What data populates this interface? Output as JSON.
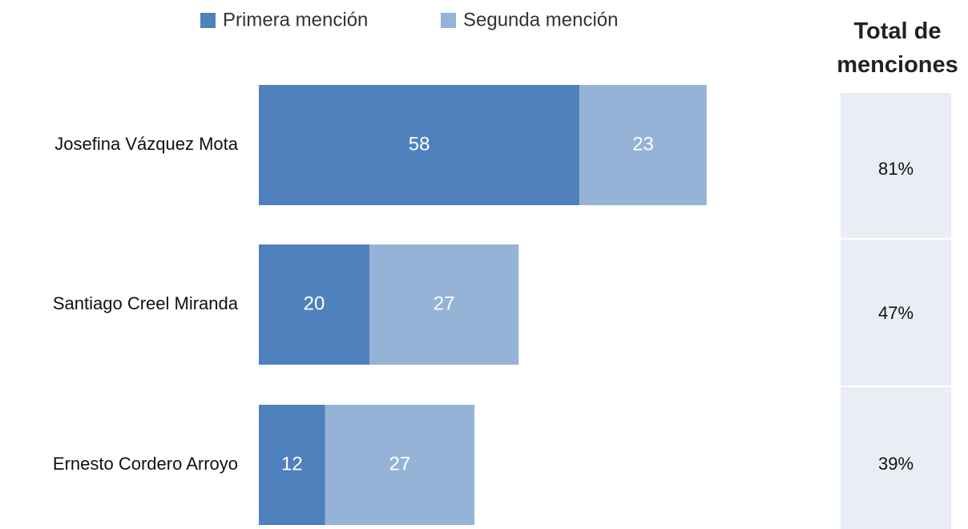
{
  "chart_data": {
    "type": "stacked-barh",
    "categories": [
      "Josefina Vázquez Mota",
      "Santiago Creel Miranda",
      "Ernesto Cordero Arroyo"
    ],
    "series": [
      {
        "name": "Primera mención",
        "color": "#4f81bd",
        "values": [
          58,
          20,
          12
        ]
      },
      {
        "name": "Segunda mención",
        "color": "#95b3d7",
        "values": [
          23,
          27,
          27
        ]
      }
    ],
    "legend": "top",
    "totals": {
      "title": "Total de menciones",
      "color": "#e9edf4",
      "values": [
        81,
        47,
        39
      ],
      "value_labels": [
        "81%",
        "47%",
        "39%"
      ]
    }
  }
}
